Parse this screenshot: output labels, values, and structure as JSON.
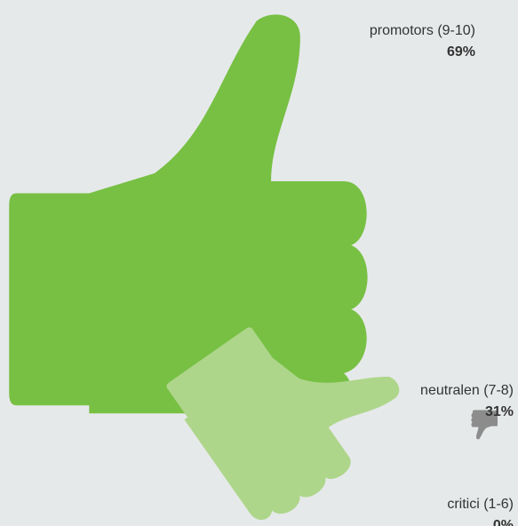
{
  "chart_data": {
    "type": "pictogram",
    "categories": [
      "promotors (9-10)",
      "neutralen (7-8)",
      "critici (1-6)"
    ],
    "values": [
      69,
      31,
      0
    ],
    "value_labels": [
      "69%",
      "31%",
      "0%"
    ],
    "colors": [
      "#77c043",
      "#aed68b",
      "#8c8c8c"
    ]
  }
}
